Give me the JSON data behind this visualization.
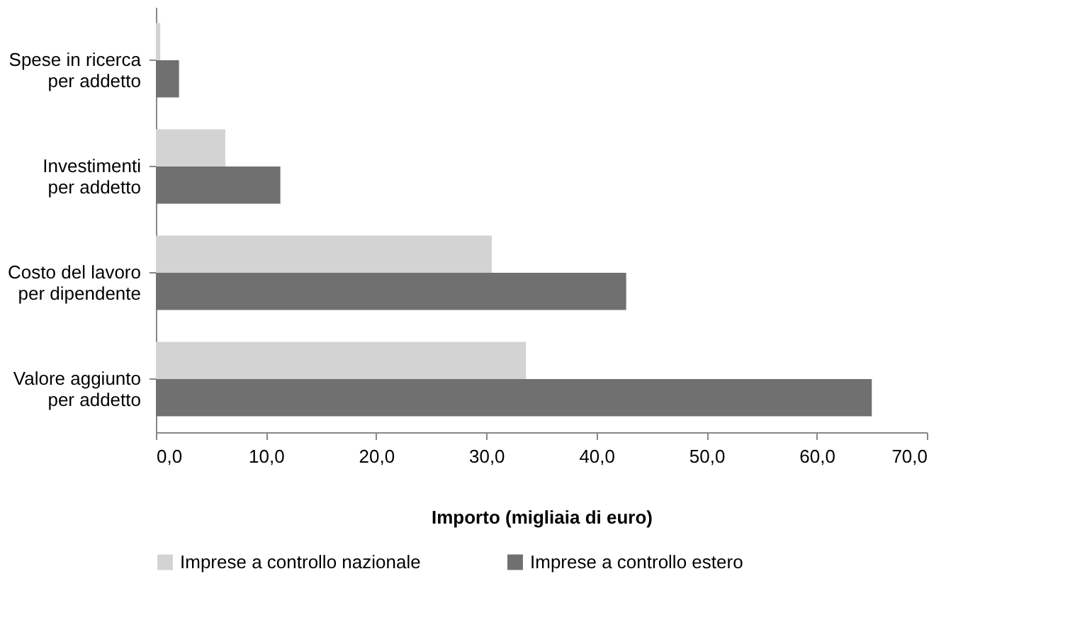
{
  "chart_data": {
    "type": "bar",
    "orientation": "horizontal",
    "xlabel": "Importo (migliaia di euro)",
    "categories": [
      "Spese in ricerca\nper addetto",
      "Investimenti\nper addetto",
      "Costo del lavoro\nper dipendente",
      "Valore aggiunto\nper addetto"
    ],
    "series": [
      {
        "name": "Imprese a controllo nazionale",
        "color": "#d3d3d3",
        "values": [
          0.4,
          6.3,
          30.5,
          33.6
        ]
      },
      {
        "name": "Imprese a controllo estero",
        "color": "#707070",
        "values": [
          2.1,
          11.3,
          42.7,
          65.0
        ]
      }
    ],
    "xlim": [
      0,
      70
    ],
    "xticks": [
      {
        "value": 0,
        "label": "0,0"
      },
      {
        "value": 10,
        "label": "10,0"
      },
      {
        "value": 20,
        "label": "20,0"
      },
      {
        "value": 30,
        "label": "30,0"
      },
      {
        "value": 40,
        "label": "40,0"
      },
      {
        "value": 50,
        "label": "50,0"
      },
      {
        "value": 60,
        "label": "60,0"
      },
      {
        "value": 70,
        "label": "70,0"
      }
    ],
    "grid": false,
    "legend": "bottom"
  }
}
